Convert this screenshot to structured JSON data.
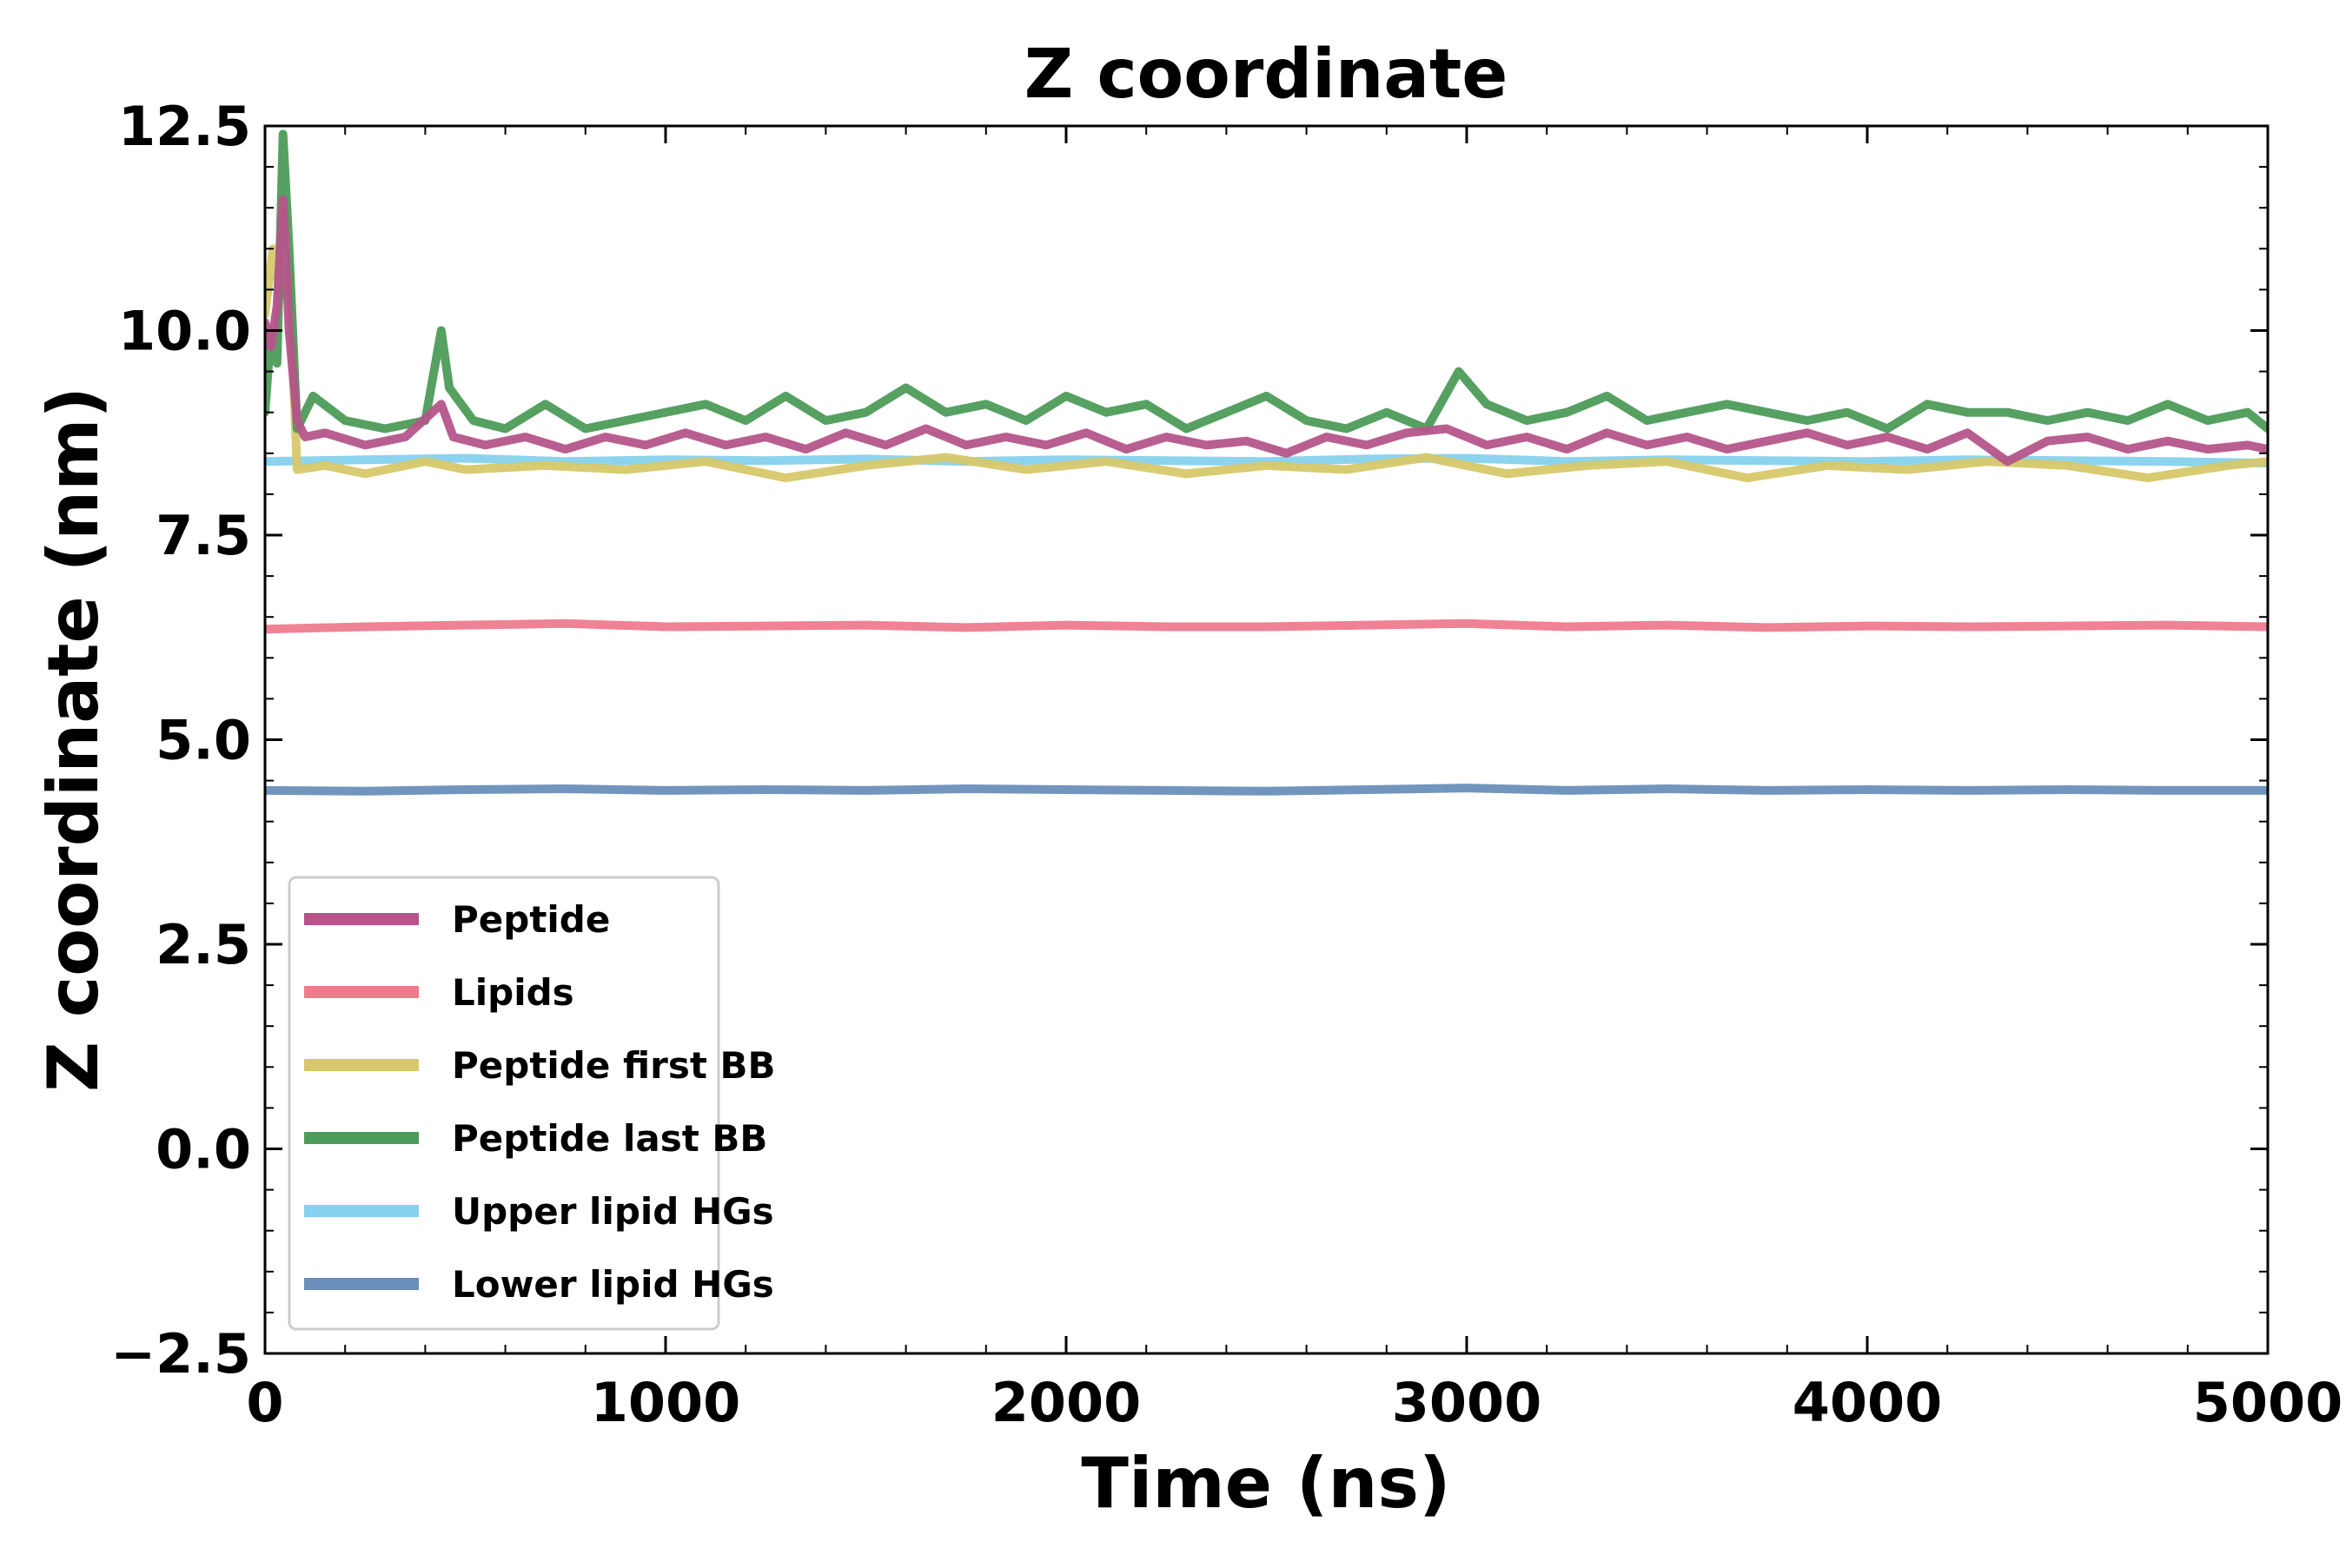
{
  "chart_data": {
    "type": "line",
    "title": "Z coordinate",
    "xlabel": "Time (ns)",
    "ylabel": "Z coordinate (nm)",
    "xlim": [
      0,
      5000
    ],
    "ylim": [
      -2.5,
      12.5
    ],
    "xticks": [
      0,
      1000,
      2000,
      3000,
      4000,
      5000
    ],
    "xtick_labels": [
      "0",
      "1000",
      "2000",
      "3000",
      "4000",
      "5000"
    ],
    "yticks": [
      -2.5,
      0.0,
      2.5,
      5.0,
      7.5,
      10.0,
      12.5
    ],
    "ytick_labels": [
      "−2.5",
      "0.0",
      "2.5",
      "5.0",
      "7.5",
      "10.0",
      "12.5"
    ],
    "grid": false,
    "legend_position": "lower-left",
    "series": [
      {
        "name": "Lower lipid HGs",
        "color": "#6a8fbb",
        "x": [
          0,
          250,
          500,
          750,
          1000,
          1250,
          1500,
          1750,
          2000,
          2250,
          2500,
          2750,
          3000,
          3250,
          3500,
          3750,
          4000,
          4250,
          4500,
          4750,
          5000
        ],
        "y": [
          4.38,
          4.37,
          4.39,
          4.4,
          4.38,
          4.39,
          4.38,
          4.4,
          4.39,
          4.38,
          4.37,
          4.39,
          4.41,
          4.38,
          4.4,
          4.38,
          4.39,
          4.38,
          4.39,
          4.38,
          4.38
        ]
      },
      {
        "name": "Lipids",
        "color": "#ee7b8e",
        "x": [
          0,
          250,
          500,
          750,
          1000,
          1250,
          1500,
          1750,
          2000,
          2250,
          2500,
          2750,
          3000,
          3250,
          3500,
          3750,
          4000,
          4250,
          4500,
          4750,
          5000
        ],
        "y": [
          6.35,
          6.38,
          6.4,
          6.42,
          6.38,
          6.39,
          6.4,
          6.37,
          6.4,
          6.38,
          6.38,
          6.4,
          6.42,
          6.38,
          6.4,
          6.37,
          6.39,
          6.38,
          6.39,
          6.4,
          6.38
        ]
      },
      {
        "name": "Upper lipid HGs",
        "color": "#86d1ed",
        "x": [
          0,
          250,
          500,
          750,
          1000,
          1250,
          1500,
          1750,
          2000,
          2250,
          2500,
          2750,
          3000,
          3250,
          3500,
          3750,
          4000,
          4250,
          4500,
          4750,
          5000
        ],
        "y": [
          8.4,
          8.42,
          8.44,
          8.4,
          8.42,
          8.41,
          8.43,
          8.4,
          8.42,
          8.41,
          8.4,
          8.43,
          8.44,
          8.4,
          8.42,
          8.41,
          8.4,
          8.42,
          8.41,
          8.4,
          8.38
        ]
      },
      {
        "name": "Peptide first BB",
        "color": "#d6c86a",
        "x": [
          0,
          20,
          40,
          60,
          80,
          150,
          250,
          400,
          500,
          700,
          900,
          1100,
          1300,
          1500,
          1700,
          1900,
          2100,
          2300,
          2500,
          2700,
          2900,
          3100,
          3300,
          3500,
          3700,
          3900,
          4100,
          4300,
          4500,
          4700,
          4900,
          5000
        ],
        "y": [
          10.2,
          11.0,
          10.4,
          10.8,
          8.3,
          8.35,
          8.25,
          8.4,
          8.3,
          8.35,
          8.3,
          8.4,
          8.2,
          8.35,
          8.45,
          8.3,
          8.4,
          8.25,
          8.35,
          8.3,
          8.45,
          8.25,
          8.35,
          8.4,
          8.2,
          8.35,
          8.3,
          8.4,
          8.35,
          8.2,
          8.35,
          8.4
        ]
      },
      {
        "name": "Peptide last BB",
        "color": "#4d9b5a",
        "x": [
          0,
          15,
          30,
          45,
          60,
          80,
          120,
          200,
          300,
          400,
          440,
          460,
          520,
          600,
          700,
          800,
          900,
          1000,
          1100,
          1200,
          1300,
          1400,
          1500,
          1600,
          1700,
          1800,
          1900,
          2000,
          2100,
          2200,
          2300,
          2400,
          2500,
          2600,
          2700,
          2800,
          2900,
          2980,
          3050,
          3150,
          3250,
          3350,
          3450,
          3550,
          3650,
          3750,
          3850,
          3950,
          4050,
          4150,
          4250,
          4350,
          4450,
          4550,
          4650,
          4750,
          4850,
          4950,
          5000
        ],
        "y": [
          9.0,
          10.0,
          9.6,
          12.4,
          11.0,
          8.8,
          9.2,
          8.9,
          8.8,
          8.9,
          10.0,
          9.3,
          8.9,
          8.8,
          9.1,
          8.8,
          8.9,
          9.0,
          9.1,
          8.9,
          9.2,
          8.9,
          9.0,
          9.3,
          9.0,
          9.1,
          8.9,
          9.2,
          9.0,
          9.1,
          8.8,
          9.0,
          9.2,
          8.9,
          8.8,
          9.0,
          8.8,
          9.5,
          9.1,
          8.9,
          9.0,
          9.2,
          8.9,
          9.0,
          9.1,
          9.0,
          8.9,
          9.0,
          8.8,
          9.1,
          9.0,
          9.0,
          8.9,
          9.0,
          8.9,
          9.1,
          8.9,
          9.0,
          8.8
        ]
      },
      {
        "name": "Peptide",
        "color": "#b5558a",
        "x": [
          0,
          15,
          30,
          45,
          60,
          80,
          100,
          150,
          250,
          350,
          440,
          470,
          550,
          650,
          750,
          850,
          950,
          1050,
          1150,
          1250,
          1350,
          1450,
          1550,
          1650,
          1750,
          1850,
          1950,
          2050,
          2150,
          2250,
          2350,
          2450,
          2550,
          2650,
          2750,
          2850,
          2950,
          3050,
          3150,
          3250,
          3350,
          3450,
          3550,
          3650,
          3750,
          3850,
          3950,
          4050,
          4150,
          4250,
          4350,
          4450,
          4550,
          4650,
          4750,
          4850,
          4950,
          5000
        ],
        "y": [
          10.1,
          9.8,
          10.3,
          11.6,
          10.0,
          8.9,
          8.7,
          8.75,
          8.6,
          8.7,
          9.1,
          8.7,
          8.6,
          8.7,
          8.55,
          8.7,
          8.6,
          8.75,
          8.6,
          8.7,
          8.55,
          8.75,
          8.6,
          8.8,
          8.6,
          8.7,
          8.6,
          8.75,
          8.55,
          8.7,
          8.6,
          8.65,
          8.5,
          8.7,
          8.6,
          8.75,
          8.8,
          8.6,
          8.7,
          8.55,
          8.75,
          8.6,
          8.7,
          8.55,
          8.65,
          8.75,
          8.6,
          8.7,
          8.55,
          8.75,
          8.4,
          8.65,
          8.7,
          8.55,
          8.65,
          8.55,
          8.6,
          8.55
        ]
      }
    ],
    "legend_order": [
      "Peptide",
      "Lipids",
      "Peptide first BB",
      "Peptide last BB",
      "Upper lipid HGs",
      "Lower lipid HGs"
    ]
  }
}
